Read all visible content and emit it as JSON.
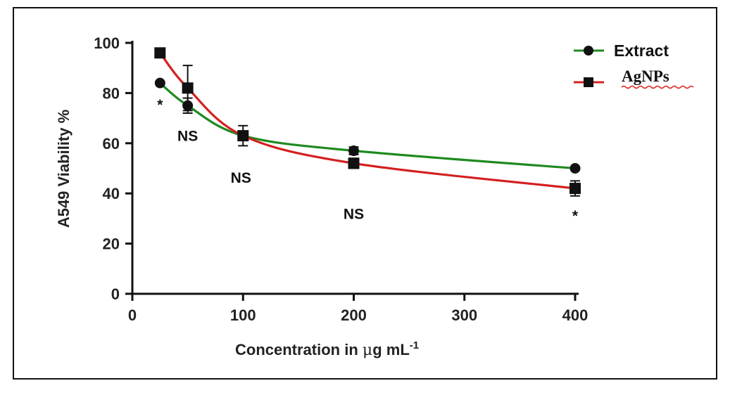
{
  "chart_data": {
    "type": "line",
    "title": "",
    "xlabel_prefix": "Concentration in ",
    "xlabel_mu": "μ",
    "xlabel_unit": "g mL",
    "xlabel_sup": "-1",
    "ylabel": "A549 Viability %",
    "xlim": [
      0,
      400
    ],
    "ylim": [
      0,
      100
    ],
    "xticks": [
      0,
      100,
      200,
      300,
      400
    ],
    "yticks": [
      0,
      20,
      40,
      60,
      80,
      100
    ],
    "grid": false,
    "legend_position": "top-right",
    "series": [
      {
        "name": "Extract",
        "color": "#1f8a1f",
        "marker": "circle",
        "x": [
          25,
          50,
          100,
          200,
          400
        ],
        "y": [
          84,
          75,
          63,
          57,
          50
        ],
        "err": [
          0,
          3,
          1.5,
          1.5,
          0.5
        ]
      },
      {
        "name": "AgNPs",
        "color": "#d42020",
        "marker": "square",
        "x": [
          25,
          50,
          100,
          200,
          400
        ],
        "y": [
          96,
          82,
          63,
          52,
          42
        ],
        "err": [
          0,
          9,
          4,
          2,
          3
        ]
      }
    ],
    "annotations": [
      {
        "text": "*",
        "x": 25,
        "y": 84,
        "position": "below"
      },
      {
        "text": "NS",
        "x": 50,
        "y": 75,
        "position": "below"
      },
      {
        "text": "NS",
        "x": 100,
        "y": 63,
        "position": "below"
      },
      {
        "text": "NS",
        "x": 200,
        "y": 52,
        "position": "below"
      },
      {
        "text": "*",
        "x": 400,
        "y": 42,
        "position": "below"
      }
    ]
  }
}
